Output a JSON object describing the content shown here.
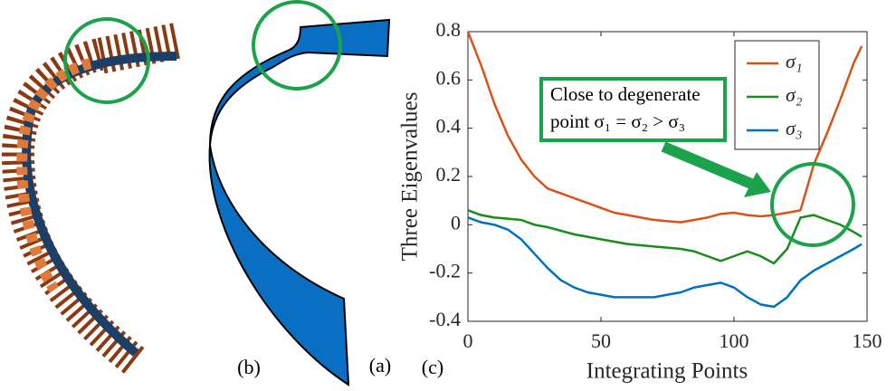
{
  "panel_labels": [
    "(a)",
    "(b)",
    "(c)"
  ],
  "chart_data": {
    "type": "line",
    "x_label": "Integrating Points",
    "y_label": "Three Eigenvalues",
    "annotation": [
      "Close to degenerate",
      "point σ₁ = σ₂ > σ₃"
    ],
    "x": [
      0,
      5,
      10,
      15,
      20,
      25,
      30,
      35,
      40,
      45,
      50,
      55,
      60,
      65,
      70,
      75,
      80,
      85,
      90,
      95,
      100,
      105,
      110,
      115,
      120,
      125,
      130,
      135,
      140,
      145,
      148
    ],
    "series": [
      {
        "name": "σ₁",
        "color": "#d95319",
        "values": [
          0.8,
          0.66,
          0.5,
          0.37,
          0.27,
          0.2,
          0.15,
          0.13,
          0.11,
          0.09,
          0.07,
          0.05,
          0.04,
          0.03,
          0.02,
          0.015,
          0.01,
          0.02,
          0.03,
          0.045,
          0.05,
          0.04,
          0.035,
          0.04,
          0.05,
          0.06,
          0.25,
          0.38,
          0.52,
          0.67,
          0.74
        ]
      },
      {
        "name": "σ₂",
        "color": "#1a8c1a",
        "values": [
          0.06,
          0.04,
          0.03,
          0.025,
          0.02,
          0.0,
          -0.01,
          -0.025,
          -0.04,
          -0.05,
          -0.06,
          -0.07,
          -0.08,
          -0.085,
          -0.09,
          -0.095,
          -0.1,
          -0.11,
          -0.13,
          -0.15,
          -0.13,
          -0.11,
          -0.13,
          -0.16,
          -0.1,
          0.03,
          0.04,
          0.02,
          0.0,
          -0.03,
          -0.05
        ]
      },
      {
        "name": "σ₃",
        "color": "#0072bd",
        "values": [
          0.03,
          0.01,
          0.0,
          -0.02,
          -0.06,
          -0.12,
          -0.18,
          -0.23,
          -0.26,
          -0.28,
          -0.29,
          -0.3,
          -0.3,
          -0.3,
          -0.3,
          -0.29,
          -0.28,
          -0.26,
          -0.25,
          -0.24,
          -0.26,
          -0.3,
          -0.33,
          -0.34,
          -0.3,
          -0.23,
          -0.19,
          -0.16,
          -0.13,
          -0.1,
          -0.08
        ]
      }
    ],
    "xlim": [
      0,
      150
    ],
    "ylim": [
      -0.4,
      0.8
    ],
    "xticks": [
      0,
      50,
      100,
      150
    ],
    "yticks": [
      -0.4,
      -0.2,
      0,
      0.2,
      0.4,
      0.6,
      0.8
    ],
    "grid": false,
    "legend": "top-right"
  }
}
